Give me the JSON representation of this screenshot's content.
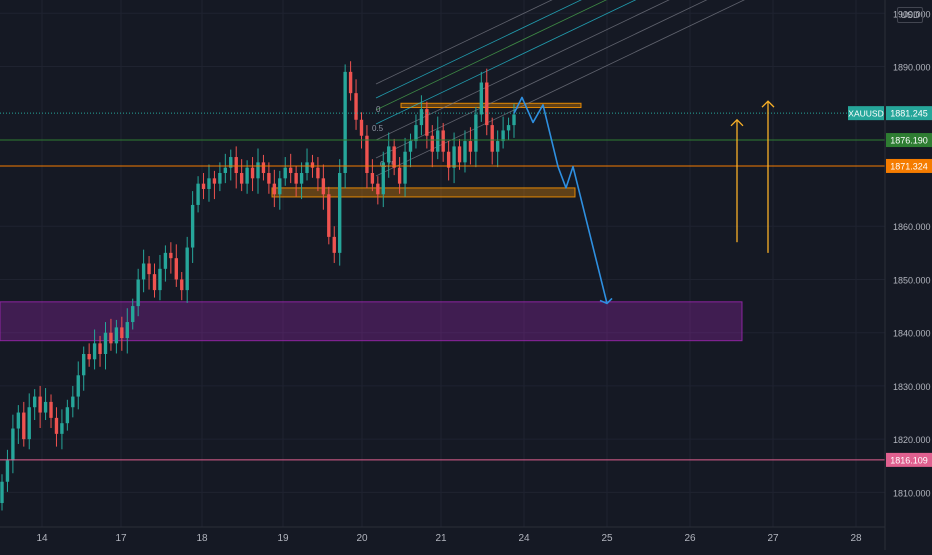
{
  "chart_data": {
    "type": "candlestick",
    "symbol": "XAUUSD",
    "currency": "USD",
    "ylim": [
      1803.5,
      1902.5
    ],
    "y_ticks": [
      {
        "value": 1900,
        "label": "1900.000"
      },
      {
        "value": 1890,
        "label": "1890.000"
      },
      {
        "value": 1860,
        "label": "1860.000"
      },
      {
        "value": 1850,
        "label": "1850.000"
      },
      {
        "value": 1840,
        "label": "1840.000"
      },
      {
        "value": 1830,
        "label": "1830.000"
      },
      {
        "value": 1820,
        "label": "1820.000"
      },
      {
        "value": 1810,
        "label": "1810.000"
      }
    ],
    "x_ticks": [
      "14",
      "17",
      "18",
      "19",
      "20",
      "21",
      "24",
      "25",
      "26",
      "27",
      "28"
    ],
    "price_levels": [
      {
        "name": "current-price",
        "value": 1881.245,
        "label": "1881.245",
        "tag": "XAUUSD",
        "color": "#26a69a",
        "style": "dotted"
      },
      {
        "name": "level-green",
        "value": 1876.19,
        "label": "1876.190",
        "color": "#2e7d32",
        "style": "solid"
      },
      {
        "name": "level-orange",
        "value": 1871.324,
        "label": "1871.324",
        "color": "#f57c00",
        "style": "solid"
      },
      {
        "name": "level-pink",
        "value": 1816.109,
        "label": "1816.109",
        "color": "#e0608f",
        "style": "solid"
      }
    ],
    "zones": [
      {
        "name": "demand-zone-purple",
        "y_range": [
          1838.5,
          1845.8
        ],
        "color": "#9c27b0"
      },
      {
        "name": "resistance-zone-orange",
        "y_range": [
          1882.3,
          1883.1
        ],
        "color": "#ff9800"
      },
      {
        "name": "support-zone-orange",
        "y_range": [
          1865.5,
          1867.2
        ],
        "color": "#ff9800"
      }
    ],
    "fib_labels": [
      "0",
      "0.5",
      "0.75"
    ],
    "candles": {
      "start": 1808,
      "closes": [
        1812,
        1816,
        1822,
        1825,
        1820,
        1826,
        1828,
        1825,
        1827,
        1824,
        1821,
        1823,
        1826,
        1828,
        1832,
        1836,
        1835,
        1838,
        1836,
        1840,
        1838,
        1841,
        1839,
        1842,
        1845,
        1850,
        1853,
        1851,
        1848,
        1852,
        1855,
        1854,
        1850,
        1848,
        1856,
        1864,
        1868,
        1867,
        1869,
        1868,
        1870,
        1871,
        1873,
        1870,
        1868,
        1871,
        1869,
        1872,
        1870,
        1868,
        1866,
        1869,
        1871,
        1870,
        1868,
        1870,
        1872,
        1871,
        1869,
        1866,
        1858,
        1855,
        1870,
        1889,
        1885,
        1880,
        1877,
        1870,
        1868,
        1866,
        1872,
        1875,
        1871,
        1868,
        1874,
        1876,
        1879,
        1882,
        1877,
        1874,
        1878,
        1874,
        1871,
        1875,
        1872,
        1876,
        1874,
        1881,
        1887,
        1879,
        1874,
        1876,
        1878,
        1879,
        1881
      ]
    },
    "projection": [
      {
        "t": 0,
        "v": 1881.2
      },
      {
        "t": 3,
        "v": 1884.2
      },
      {
        "t": 5,
        "v": 1879.5
      },
      {
        "t": 8,
        "v": 1882.8
      },
      {
        "t": 13,
        "v": 1871.2
      },
      {
        "t": 15,
        "v": 1867.2
      },
      {
        "t": 16.5,
        "v": 1871.2
      },
      {
        "t": 22,
        "v": 1845.5
      }
    ],
    "long_arrows": [
      {
        "from": 1857,
        "to": 1880,
        "color": "#f9b027"
      },
      {
        "from": 1855,
        "to": 1883.5,
        "color": "#f9b027"
      }
    ]
  }
}
